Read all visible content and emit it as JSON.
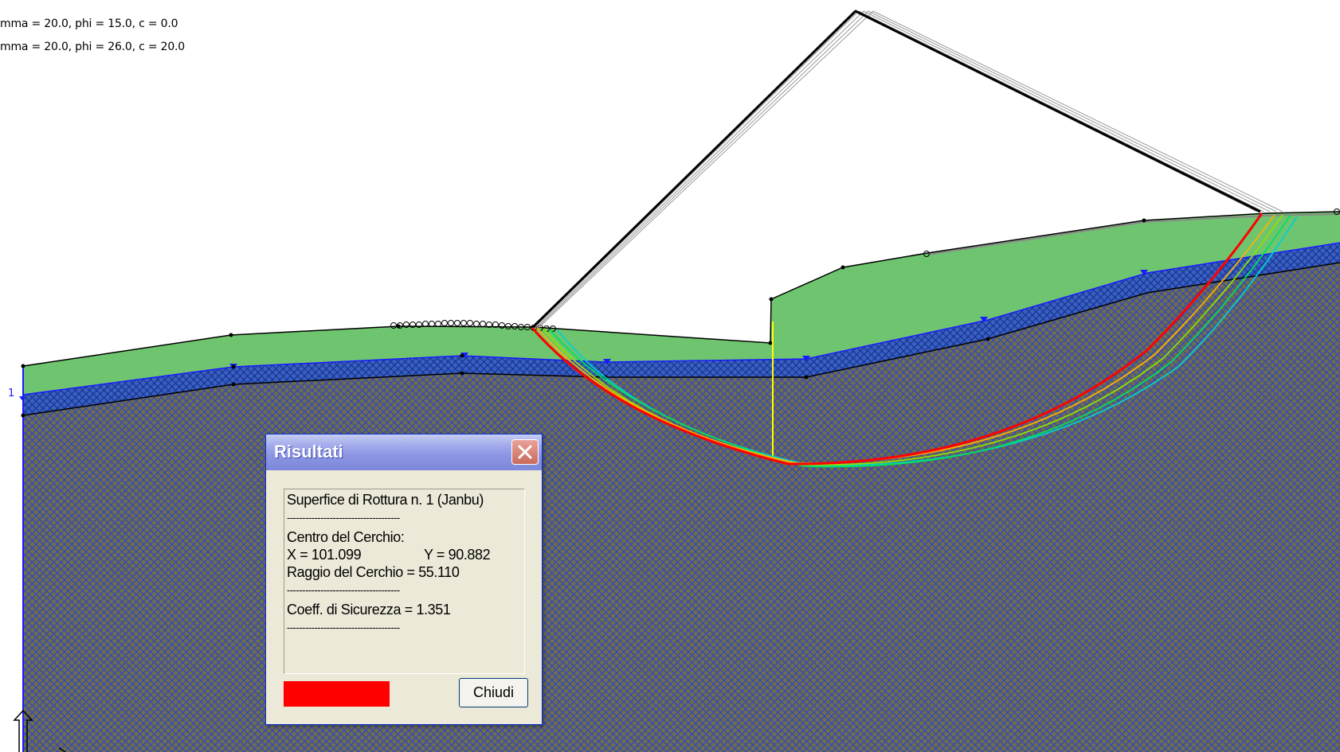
{
  "legend": {
    "line1": "mma = 20.0, phi = 15.0, c = 0.0",
    "line2": "mma = 20.0, phi = 26.0, c = 20.0"
  },
  "axis_marker": "1",
  "dialog": {
    "title": "Risultati",
    "close_icon": "close-icon",
    "lines": {
      "heading": "Superfice di Rottura n. 1 (Janbu)",
      "sep1": "-------------------------------------",
      "center_label": "Centro del Cerchio:",
      "x": "X = 101.099",
      "y": "Y = 90.882",
      "radius": "Raggio del Cerchio = 55.110",
      "sep2": "-------------------------------------",
      "safety": "Coeff. di Sicurezza = 1.351",
      "sep3": "-------------------------------------"
    },
    "swatch_color": "#ff0000",
    "close_button": "Chiudi"
  },
  "colors": {
    "upper_layer": "#6fc56f",
    "lower_layer": "#6e6e48",
    "hatch": "#1f3fd0",
    "critical_surface": "#ff0000"
  }
}
